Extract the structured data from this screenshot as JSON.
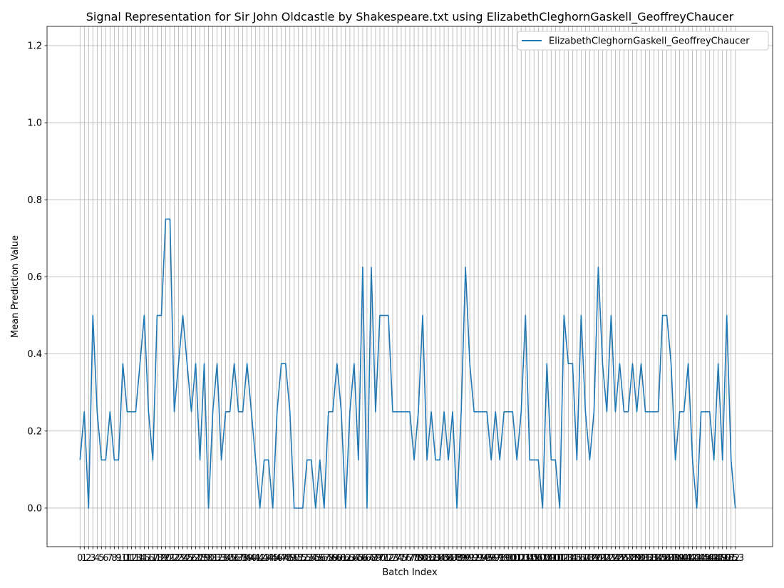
{
  "chart_data": {
    "type": "line",
    "title": "Signal Representation for Sir John Oldcastle by Shakespeare.txt using ElizabethCleghornGaskell_GeoffreyChaucer",
    "xlabel": "Batch Index",
    "ylabel": "Mean Prediction Value",
    "xlim": [
      -7.7,
      161.7
    ],
    "ylim": [
      -0.1,
      1.25
    ],
    "yticks": [
      0.0,
      0.2,
      0.4,
      0.6,
      0.8,
      1.0,
      1.2
    ],
    "ytick_labels": [
      "0.0",
      "0.2",
      "0.4",
      "0.6",
      "0.8",
      "1.0",
      "1.2"
    ],
    "xtick_labels": [
      "0",
      "1",
      "2",
      "3",
      "4",
      "5",
      "6",
      "7",
      "8",
      "9",
      "10",
      "11",
      "12",
      "13",
      "14",
      "15",
      "16",
      "17",
      "18",
      "19",
      "20",
      "21",
      "22",
      "23",
      "24",
      "25",
      "26",
      "27",
      "28",
      "29",
      "30",
      "31",
      "32",
      "33",
      "34",
      "35",
      "36",
      "37",
      "38",
      "39",
      "40",
      "41",
      "42",
      "43",
      "44",
      "45",
      "46",
      "47",
      "48",
      "49",
      "50",
      "51",
      "52",
      "53",
      "54",
      "55",
      "56",
      "57",
      "58",
      "59",
      "60",
      "61",
      "62",
      "63",
      "64",
      "65",
      "66",
      "67",
      "68",
      "69",
      "70",
      "71",
      "72",
      "73",
      "74",
      "75",
      "76",
      "77",
      "78",
      "79",
      "80",
      "81",
      "82",
      "83",
      "84",
      "85",
      "86",
      "87",
      "88",
      "89",
      "90",
      "91",
      "92",
      "93",
      "94",
      "95",
      "96",
      "97",
      "98",
      "99",
      "100",
      "101",
      "102",
      "103",
      "104",
      "105",
      "106",
      "107",
      "108",
      "109",
      "110",
      "111",
      "112",
      "113",
      "114",
      "115",
      "116",
      "117",
      "118",
      "119",
      "120",
      "121",
      "122",
      "123",
      "124",
      "125",
      "126",
      "127",
      "128",
      "129",
      "130",
      "131",
      "132",
      "133",
      "134",
      "135",
      "136",
      "137",
      "138",
      "139",
      "140",
      "141",
      "142",
      "143",
      "144",
      "145",
      "146",
      "147",
      "148",
      "149",
      "150",
      "151",
      "152",
      "153"
    ],
    "grid": true,
    "legend": "top-right",
    "series": [
      {
        "name": "ElizabethCleghornGaskell_GeoffreyChaucer",
        "color": "#1f77b4",
        "values": [
          0.125,
          0.25,
          0,
          0.5,
          0.25,
          0.125,
          0.125,
          0.25,
          0.125,
          0.125,
          0.375,
          0.25,
          0.25,
          0.25,
          0.375,
          0.5,
          0.25,
          0.125,
          0.5,
          0.5,
          0.75,
          0.75,
          0.25,
          0.375,
          0.5,
          0.375,
          0.25,
          0.375,
          0.125,
          0.375,
          0,
          0.25,
          0.375,
          0.125,
          0.25,
          0.25,
          0.375,
          0.25,
          0.25,
          0.375,
          0.25,
          0.125,
          0,
          0.125,
          0.125,
          0,
          0.25,
          0.375,
          0.375,
          0.25,
          0,
          0,
          0,
          0.125,
          0.125,
          0,
          0.125,
          0,
          0.25,
          0.25,
          0.375,
          0.25,
          0,
          0.25,
          0.375,
          0.125,
          0.625,
          0,
          0.625,
          0.25,
          0.5,
          0.5,
          0.5,
          0.25,
          0.25,
          0.25,
          0.25,
          0.25,
          0.125,
          0.25,
          0.5,
          0.125,
          0.25,
          0.125,
          0.125,
          0.25,
          0.125,
          0.25,
          0,
          0.25,
          0.625,
          0.375,
          0.25,
          0.25,
          0.25,
          0.25,
          0.125,
          0.25,
          0.125,
          0.25,
          0.25,
          0.25,
          0.125,
          0.25,
          0.5,
          0.125,
          0.125,
          0.125,
          0,
          0.375,
          0.125,
          0.125,
          0,
          0.5,
          0.375,
          0.375,
          0.125,
          0.5,
          0.25,
          0.125,
          0.25,
          0.625,
          0.375,
          0.25,
          0.5,
          0.25,
          0.375,
          0.25,
          0.25,
          0.375,
          0.25,
          0.375,
          0.25,
          0.25,
          0.25,
          0.25,
          0.5,
          0.5,
          0.375,
          0.125,
          0.25,
          0.25,
          0.375,
          0.125,
          0,
          0.25,
          0.25,
          0.25,
          0.125,
          0.375,
          0.125,
          0.5,
          0.125,
          0
        ]
      }
    ]
  }
}
